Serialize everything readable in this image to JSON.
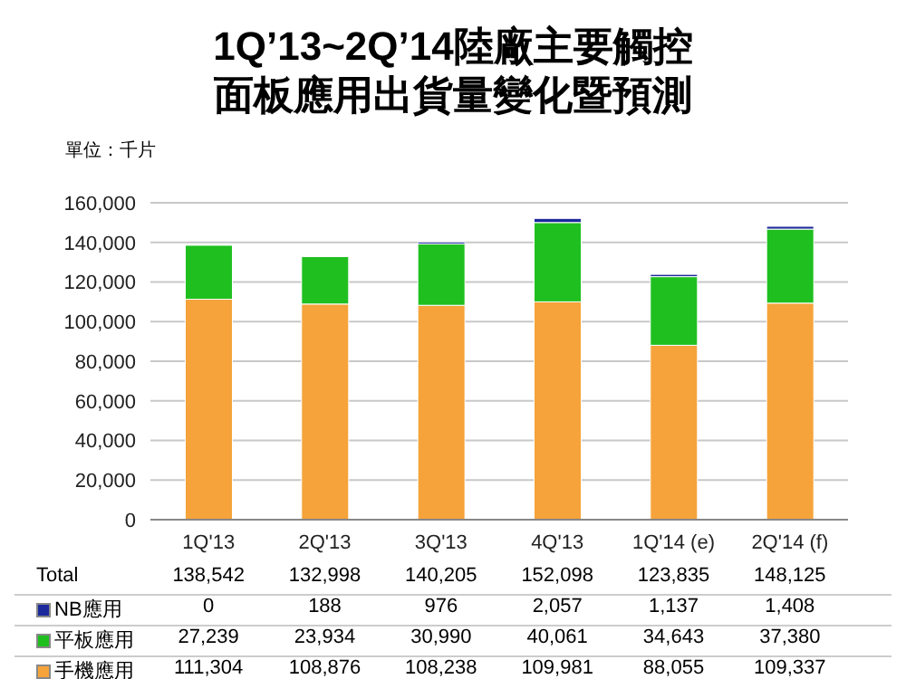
{
  "chart_data": {
    "type": "bar",
    "title": "1Q’13~2Q’14陸廠主要觸控面板應用出貨量變化暨預測",
    "ylabel": "單位：千片",
    "categories": [
      "1Q'13",
      "2Q'13",
      "3Q'13",
      "4Q'13",
      "1Q'14 (e)",
      "2Q'14 (f)"
    ],
    "series": [
      {
        "name": "手機應用",
        "color": "#f5a33a",
        "values": [
          111304,
          108876,
          108238,
          109981,
          88055,
          109337
        ],
        "value_labels": [
          "111,304",
          "108,876",
          "108,238",
          "109,981",
          "88,055",
          "109,337"
        ]
      },
      {
        "name": "平板應用",
        "color": "#1fbf1f",
        "values": [
          27239,
          23934,
          30990,
          40061,
          34643,
          37380
        ],
        "value_labels": [
          "27,239",
          "23,934",
          "30,990",
          "40,061",
          "34,643",
          "37,380"
        ]
      },
      {
        "name": "NB應用",
        "color": "#1c2a9c",
        "values": [
          0,
          188,
          976,
          2057,
          1137,
          1408
        ],
        "value_labels": [
          "0",
          "188",
          "976",
          "2,057",
          "1,137",
          "1,408"
        ]
      }
    ],
    "stacked": true,
    "ylim": [
      0,
      160000
    ],
    "yticks": [
      0,
      {
        "value": 20000,
        "label": "20,000"
      },
      {
        "value": 40000,
        "label": "40,000"
      },
      {
        "value": 60000,
        "label": "60,000"
      },
      {
        "value": 80000,
        "label": "80,000"
      },
      {
        "value": 100000,
        "label": "100,000"
      },
      {
        "value": 120000,
        "label": "120,000"
      },
      {
        "value": 140000,
        "label": "140,000"
      },
      {
        "value": 160000,
        "label": "160,000"
      }
    ],
    "grid": "y",
    "legend": "bottom",
    "totals": [
      "138,542",
      "132,998",
      "140,205",
      "152,098",
      "123,835",
      "148,125"
    ],
    "annotations": [
      "Total"
    ]
  }
}
